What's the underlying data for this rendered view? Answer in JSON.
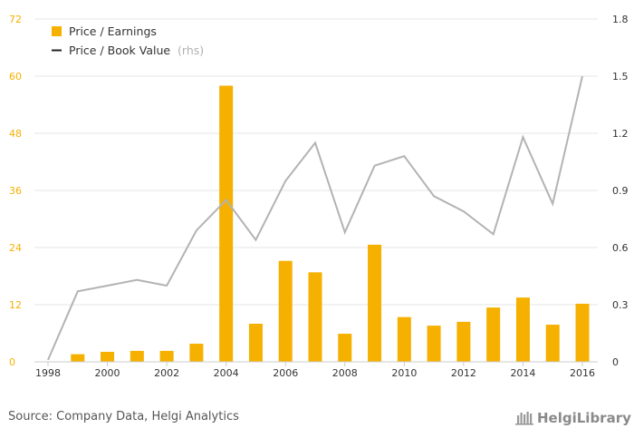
{
  "chart_data": {
    "type": "bar",
    "x": [
      1998,
      1999,
      2000,
      2001,
      2002,
      2003,
      2004,
      2005,
      2006,
      2007,
      2008,
      2009,
      2010,
      2011,
      2012,
      2013,
      2014,
      2015,
      2016
    ],
    "x_tick_labels": [
      "1998",
      "2000",
      "2002",
      "2004",
      "2006",
      "2008",
      "2010",
      "2012",
      "2014",
      "2016"
    ],
    "series": [
      {
        "name": "Price / Earnings",
        "type": "bar",
        "axis": "left",
        "color": "#F5B000",
        "values": [
          null,
          1.6,
          2.1,
          2.3,
          2.3,
          3.8,
          58.0,
          8.0,
          21.2,
          18.8,
          5.9,
          24.6,
          9.4,
          7.6,
          8.4,
          11.4,
          13.5,
          7.8,
          12.2
        ]
      },
      {
        "name": "Price / Book Value",
        "name_suffix": "(rhs)",
        "type": "line",
        "axis": "right",
        "color": "#B3B3B3",
        "legend_color": "#222222",
        "values": [
          0.01,
          0.37,
          0.4,
          0.43,
          0.4,
          0.69,
          0.85,
          0.64,
          0.95,
          1.15,
          0.68,
          1.03,
          1.08,
          0.87,
          0.79,
          0.67,
          1.18,
          0.83,
          1.5
        ]
      }
    ],
    "y_left": {
      "ylim": [
        0,
        72
      ],
      "ticks": [
        0,
        12,
        24,
        36,
        48,
        60,
        72
      ],
      "tick_color": "#F5B000"
    },
    "y_right": {
      "ylim": [
        0,
        1.8
      ],
      "ticks": [
        "0",
        "0.3",
        "0.6",
        "0.9",
        "1.2",
        "1.5",
        "1.8"
      ]
    },
    "grid": true,
    "legend_position": "top-left"
  },
  "footer": {
    "source": "Source: Company Data, Helgi Analytics",
    "brand": "HelgiLibrary"
  }
}
